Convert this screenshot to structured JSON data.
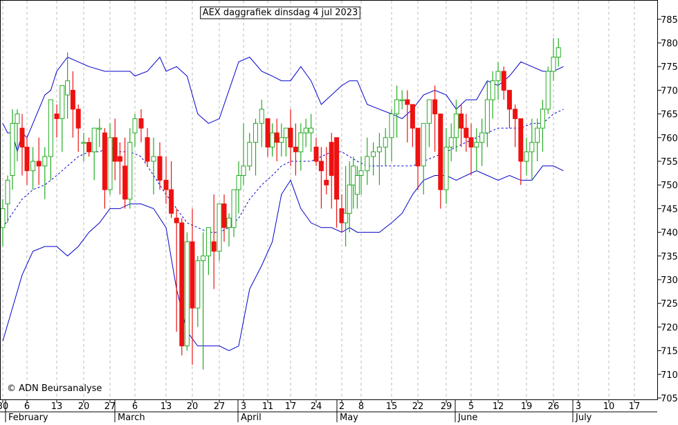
{
  "chart_data": {
    "type": "candlestick",
    "title": "AEX daggrafiek dinsdag 4 jul 2023",
    "copyright": "© ADN Beursanalyse",
    "ylim": [
      705,
      789
    ],
    "y_ticks": [
      705,
      710,
      715,
      720,
      725,
      730,
      735,
      740,
      745,
      750,
      755,
      760,
      765,
      770,
      775,
      780,
      785
    ],
    "x_day_labels": [
      "30",
      "6",
      "13",
      "20",
      "27",
      "6",
      "13",
      "20",
      "27",
      "3",
      "11",
      "17",
      "24",
      "2",
      "8",
      "15",
      "22",
      "29",
      "5",
      "12",
      "19",
      "26",
      "3",
      "10",
      "17"
    ],
    "x_month_labels": [
      "February",
      "March",
      "April",
      "May",
      "June",
      "July"
    ],
    "grid": "vertical dashed",
    "colors": {
      "up": "#22aa22",
      "down": "#ee1111",
      "bands": "#0000cc"
    },
    "series": [
      {
        "name": "",
        "kind": "ohlc",
        "values": [
          [
            741,
            747,
            737,
            745
          ],
          [
            746,
            752,
            742,
            751
          ],
          [
            752,
            766,
            749,
            763
          ],
          [
            763,
            766,
            755,
            765
          ],
          [
            762,
            765,
            752,
            758
          ],
          [
            758,
            760,
            750,
            753
          ],
          [
            753,
            758,
            749,
            755
          ],
          [
            755,
            760,
            750,
            754
          ],
          [
            754,
            758,
            747,
            756
          ],
          [
            756,
            768,
            751,
            768
          ],
          [
            765,
            767,
            760,
            764
          ],
          [
            764,
            768,
            757,
            771
          ],
          [
            769,
            778,
            764,
            772
          ],
          [
            770,
            774,
            760,
            766
          ],
          [
            766,
            767,
            757,
            762
          ],
          [
            759,
            761,
            755,
            759
          ],
          [
            759,
            760,
            756,
            757
          ],
          [
            757,
            762,
            751,
            762
          ],
          [
            762,
            764,
            758,
            762
          ],
          [
            761,
            762,
            745,
            749
          ],
          [
            749,
            763,
            748,
            760
          ],
          [
            760,
            764,
            751,
            755
          ],
          [
            756,
            759,
            748,
            755
          ],
          [
            754,
            760,
            745,
            747
          ],
          [
            747,
            762,
            745,
            759
          ],
          [
            761,
            765,
            758,
            764
          ],
          [
            764,
            766,
            759,
            762
          ],
          [
            760,
            762,
            754,
            755
          ],
          [
            755,
            760,
            748,
            756
          ],
          [
            756,
            759,
            749,
            751
          ],
          [
            751,
            756,
            746,
            749
          ],
          [
            749,
            755,
            743,
            744
          ],
          [
            743,
            745,
            719,
            742
          ],
          [
            742,
            743,
            714,
            716
          ],
          [
            716,
            740,
            715,
            738
          ],
          [
            738,
            745,
            712,
            724
          ],
          [
            724,
            735,
            720,
            734
          ],
          [
            734,
            740,
            711,
            735
          ],
          [
            735,
            737,
            731,
            741
          ],
          [
            738,
            748,
            728,
            736
          ],
          [
            736,
            743,
            734,
            746
          ],
          [
            746,
            748,
            738,
            741
          ],
          [
            741,
            744,
            737,
            743
          ],
          [
            741,
            748,
            739,
            749
          ],
          [
            749,
            755,
            744,
            752
          ],
          [
            752,
            763,
            750,
            754
          ],
          [
            754,
            761,
            753,
            759
          ],
          [
            759,
            764,
            752,
            763
          ],
          [
            763,
            768,
            758,
            766
          ],
          [
            764,
            764,
            756,
            758
          ],
          [
            758,
            763,
            756,
            761
          ],
          [
            761,
            764,
            755,
            759
          ],
          [
            759,
            763,
            756,
            760
          ],
          [
            760,
            762,
            756,
            762
          ],
          [
            762,
            766,
            754,
            758
          ],
          [
            758,
            763,
            752,
            757
          ],
          [
            757,
            763,
            753,
            761
          ],
          [
            761,
            764,
            758,
            762
          ],
          [
            761,
            765,
            757,
            762
          ],
          [
            758,
            760,
            754,
            755
          ],
          [
            755,
            758,
            745,
            753
          ],
          [
            751,
            758,
            748,
            750
          ],
          [
            759,
            761,
            745,
            752
          ],
          [
            760,
            760,
            741,
            747
          ],
          [
            745,
            748,
            740,
            742
          ],
          [
            742,
            754,
            737,
            744
          ],
          [
            744,
            755,
            740,
            750
          ],
          [
            750,
            756,
            745,
            754
          ],
          [
            748,
            754,
            745,
            752
          ],
          [
            752,
            756,
            748,
            753
          ],
          [
            753,
            760,
            750,
            756
          ],
          [
            756,
            759,
            752,
            757
          ],
          [
            757,
            761,
            750,
            758
          ],
          [
            758,
            762,
            754,
            760
          ],
          [
            760,
            766,
            755,
            765
          ],
          [
            765,
            771,
            760,
            768
          ],
          [
            768,
            770,
            766,
            768
          ],
          [
            768,
            770,
            759,
            767
          ],
          [
            767,
            764,
            758,
            762
          ],
          [
            762,
            762,
            749,
            754
          ],
          [
            754,
            762,
            748,
            763
          ],
          [
            763,
            768,
            758,
            768
          ],
          [
            768,
            771,
            757,
            765
          ],
          [
            765,
            762,
            745,
            749
          ],
          [
            749,
            762,
            746,
            758
          ],
          [
            758,
            763,
            755,
            760
          ],
          [
            760,
            768,
            757,
            765
          ],
          [
            765,
            767,
            758,
            762
          ],
          [
            762,
            765,
            757,
            760
          ],
          [
            760,
            763,
            752,
            758
          ],
          [
            758,
            762,
            753,
            759
          ],
          [
            759,
            764,
            754,
            761
          ],
          [
            761,
            772,
            758,
            768
          ],
          [
            768,
            774,
            764,
            772
          ],
          [
            772,
            776,
            768,
            774
          ],
          [
            774,
            775,
            768,
            770
          ],
          [
            770,
            768,
            762,
            766
          ],
          [
            766,
            767,
            758,
            764
          ],
          [
            764,
            762,
            750,
            755
          ],
          [
            755,
            760,
            752,
            757
          ],
          [
            757,
            764,
            751,
            759
          ],
          [
            759,
            764,
            755,
            762
          ],
          [
            762,
            768,
            757,
            766
          ],
          [
            766,
            775,
            765,
            774
          ],
          [
            774,
            781,
            772,
            777
          ],
          [
            777,
            781,
            775,
            779
          ]
        ]
      },
      {
        "name": "",
        "kind": "line",
        "style": "solid",
        "role": "upper band",
        "x": [
          0,
          1,
          2,
          3,
          4,
          5,
          6,
          8,
          9,
          10,
          12,
          14,
          16,
          19,
          20,
          22,
          24,
          25,
          27,
          29,
          30,
          32,
          34,
          36,
          38,
          40,
          42,
          44,
          46,
          48,
          50,
          52,
          54,
          56,
          58,
          60,
          62,
          64,
          66,
          68,
          70,
          72,
          74,
          76,
          78,
          80,
          82,
          84,
          86,
          88,
          90,
          92,
          94,
          96,
          98,
          100,
          102,
          104,
          106
        ],
        "values": [
          763,
          761,
          761,
          757,
          761,
          760,
          763,
          769,
          770,
          774,
          777,
          776,
          775,
          774,
          774,
          774,
          774,
          773,
          774,
          777,
          774,
          775,
          773,
          765,
          763,
          764,
          770,
          776,
          777,
          774,
          773,
          772,
          772,
          775,
          772,
          767,
          769,
          771,
          772,
          772,
          767,
          766,
          765,
          764,
          766,
          769,
          770,
          769,
          766,
          768,
          768,
          772,
          771,
          773,
          776,
          775,
          774,
          774,
          775
        ]
      },
      {
        "name": "",
        "kind": "line",
        "style": "dashed",
        "role": "middle band",
        "x": [
          0,
          2,
          4,
          6,
          8,
          10,
          12,
          14,
          16,
          18,
          20,
          22,
          24,
          26,
          28,
          30,
          32,
          34,
          36,
          38,
          40,
          42,
          44,
          46,
          48,
          50,
          52,
          54,
          56,
          58,
          60,
          62,
          64,
          66,
          68,
          70,
          72,
          74,
          76,
          78,
          80,
          82,
          84,
          86,
          88,
          90,
          92,
          94,
          96,
          98,
          100,
          102,
          104,
          106
        ],
        "values": [
          741,
          744,
          747,
          749,
          750,
          752,
          754,
          756,
          757,
          757,
          758,
          757,
          757,
          756,
          752,
          748,
          745,
          742,
          741,
          740,
          740,
          741,
          743,
          747,
          750,
          752,
          754,
          755,
          755,
          755,
          756,
          757,
          757,
          756,
          755,
          754,
          754,
          754,
          754,
          754,
          755,
          756,
          757,
          758,
          759,
          760,
          761,
          762,
          762,
          762,
          763,
          763,
          765,
          766
        ]
      },
      {
        "name": "",
        "kind": "line",
        "style": "solid",
        "role": "lower band",
        "x": [
          0,
          2,
          4,
          6,
          8,
          10,
          12,
          14,
          16,
          18,
          20,
          22,
          24,
          26,
          28,
          30,
          32,
          34,
          36,
          38,
          40,
          42,
          44,
          46,
          48,
          50,
          52,
          54,
          56,
          58,
          60,
          62,
          64,
          66,
          68,
          70,
          72,
          74,
          76,
          78,
          80,
          82,
          84,
          86,
          88,
          90,
          92,
          94,
          96,
          98,
          100,
          102,
          104,
          106
        ],
        "values": [
          717,
          724,
          731,
          736,
          737,
          737,
          735,
          737,
          740,
          742,
          745,
          745,
          746,
          746,
          745,
          741,
          728,
          719,
          716,
          716,
          716,
          715,
          716,
          728,
          733,
          738,
          748,
          751,
          745,
          742,
          741,
          741,
          740,
          741,
          740,
          740,
          740,
          742,
          744,
          748,
          751,
          752,
          752,
          751,
          752,
          753,
          752,
          751,
          752,
          751,
          751,
          754,
          754,
          753
        ]
      }
    ]
  }
}
